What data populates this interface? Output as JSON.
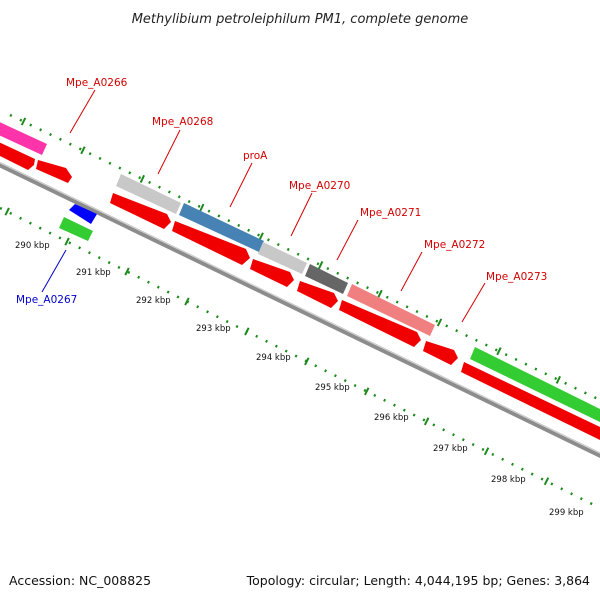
{
  "title": "Methylibium petroleiphilum PM1, complete genome",
  "footer": {
    "accession": "Accession: NC_008825",
    "summary": "Topology: circular; Length: 4,044,195 bp; Genes: 3,864"
  },
  "colors": {
    "label_forward": "#d40000",
    "label_reverse": "#0000cc",
    "backbone": "#8c8c8c",
    "tick_marks": "#1d8a1d",
    "cds_red": "#f00000"
  },
  "gene_labels": [
    {
      "name": "Mpe_A0266",
      "color": "#d40000"
    },
    {
      "name": "Mpe_A0268",
      "color": "#d40000"
    },
    {
      "name": "proA",
      "color": "#d40000"
    },
    {
      "name": "Mpe_A0270",
      "color": "#d40000"
    },
    {
      "name": "Mpe_A0271",
      "color": "#d40000"
    },
    {
      "name": "Mpe_A0272",
      "color": "#d40000"
    },
    {
      "name": "Mpe_A0273",
      "color": "#d40000"
    },
    {
      "name": "Mpe_A0267",
      "color": "#0000cc"
    }
  ],
  "ruler_labels": [
    "290 kbp",
    "291 kbp",
    "292 kbp",
    "293 kbp",
    "294 kbp",
    "295 kbp",
    "296 kbp",
    "297 kbp",
    "298 kbp",
    "299 kbp"
  ],
  "features": [
    {
      "id": "f1",
      "color": "#ff33aa"
    },
    {
      "id": "f2",
      "color": "#c8c8c8"
    },
    {
      "id": "f3",
      "color": "#4682b4"
    },
    {
      "id": "f4",
      "color": "#c8c8c8"
    },
    {
      "id": "f5",
      "color": "#666666"
    },
    {
      "id": "f6",
      "color": "#f08080"
    },
    {
      "id": "f7",
      "color": "#33cc33"
    },
    {
      "id": "f8",
      "color": "#0000ff"
    },
    {
      "id": "f9",
      "color": "#33cc33"
    }
  ]
}
